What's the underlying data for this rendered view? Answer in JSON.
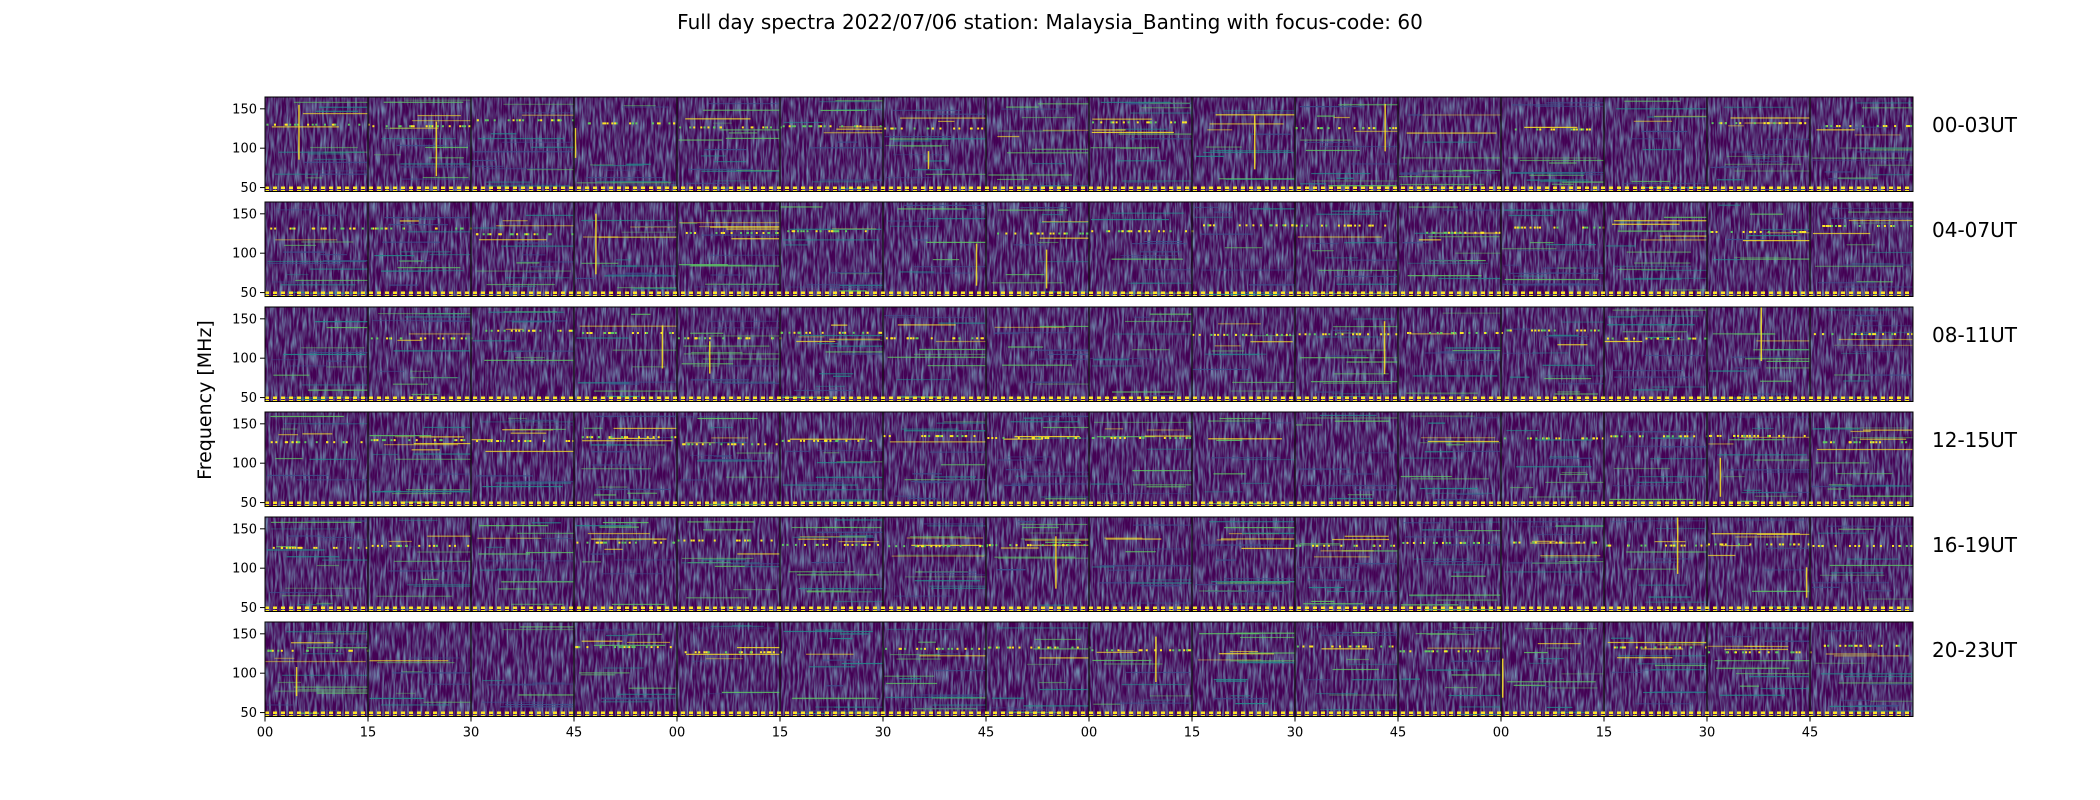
{
  "chart_data": {
    "type": "heatmap",
    "title": "Full day spectra 2022/07/06 station: Malaysia_Banting with focus-code: 60",
    "ylabel": "Frequency [MHz]",
    "xlabel": "",
    "colormap": "viridis",
    "background_color": "#440154",
    "ylim": [
      45,
      165
    ],
    "yticks": [
      50,
      100,
      150
    ],
    "xticks": [
      "00",
      "15",
      "30",
      "45",
      "00",
      "15",
      "30",
      "45",
      "00",
      "15",
      "30",
      "45",
      "00",
      "15",
      "30",
      "45"
    ],
    "panels_per_row": 16,
    "panel_minutes": 15,
    "rows": [
      {
        "label": "00-03UT"
      },
      {
        "label": "04-07UT"
      },
      {
        "label": "08-11UT"
      },
      {
        "label": "12-15UT"
      },
      {
        "label": "16-19UT"
      },
      {
        "label": "20-23UT"
      }
    ]
  }
}
